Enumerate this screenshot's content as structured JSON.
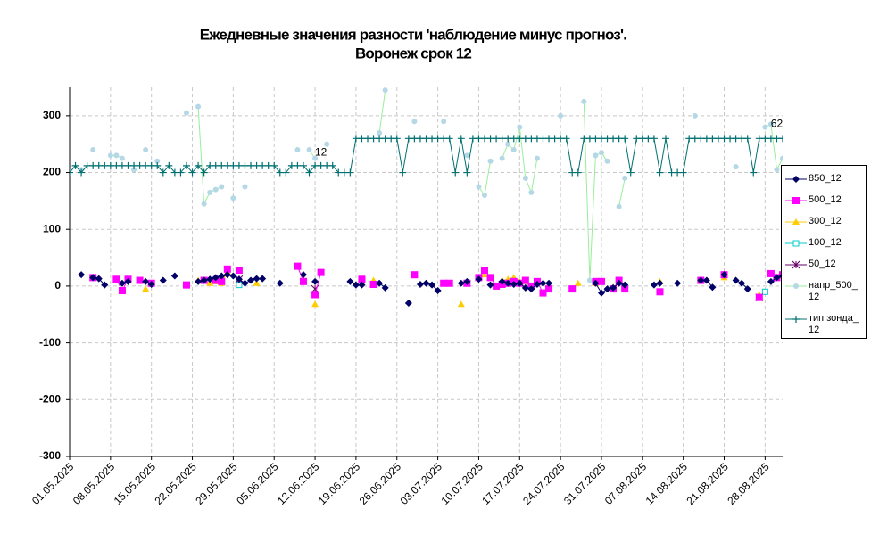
{
  "chart_data": {
    "type": "line",
    "title": "Ежедневные значения разности 'наблюдение минус прогноз'.",
    "subtitle": "Воронеж    срок 12",
    "annotations": [
      {
        "text": "12",
        "category": 43,
        "y": 235
      },
      {
        "text": "62",
        "category": 121,
        "y": 285
      }
    ],
    "categories": [
      "01.05.2025",
      null,
      null,
      null,
      null,
      null,
      null,
      "08.05.2025",
      null,
      null,
      null,
      null,
      null,
      null,
      "15.05.2025",
      null,
      null,
      null,
      null,
      null,
      null,
      "22.05.2025",
      null,
      null,
      null,
      null,
      null,
      null,
      "29.05.2025",
      null,
      null,
      null,
      null,
      null,
      null,
      "05.06.2025",
      null,
      null,
      null,
      null,
      null,
      null,
      "12.06.2025",
      null,
      null,
      null,
      null,
      null,
      null,
      "19.06.2025",
      null,
      null,
      null,
      null,
      null,
      null,
      "26.06.2025",
      null,
      null,
      null,
      null,
      null,
      null,
      "03.07.2025",
      null,
      null,
      null,
      null,
      null,
      null,
      "10.07.2025",
      null,
      null,
      null,
      null,
      null,
      null,
      "17.07.2025",
      null,
      null,
      null,
      null,
      null,
      null,
      "24.07.2025",
      null,
      null,
      null,
      null,
      null,
      null,
      "31.07.2025",
      null,
      null,
      null,
      null,
      null,
      null,
      "07.08.2025",
      null,
      null,
      null,
      null,
      null,
      null,
      "14.08.2025",
      null,
      null,
      null,
      null,
      null,
      null,
      "21.08.2025",
      null,
      null,
      null,
      null,
      null,
      null,
      "28.08.2025",
      null,
      null,
      null
    ],
    "ylim": [
      -300,
      350
    ],
    "yticks": [
      -300,
      -200,
      -100,
      0,
      100,
      200,
      300
    ],
    "grid": true,
    "legend": "right",
    "series": [
      {
        "name": "850_12",
        "color": "#000066",
        "line_color": "#000066",
        "marker": "diamond",
        "values": [
          null,
          null,
          20,
          null,
          15,
          13,
          2,
          null,
          null,
          5,
          8,
          null,
          null,
          8,
          3,
          null,
          10,
          null,
          18,
          null,
          null,
          null,
          8,
          10,
          12,
          15,
          18,
          20,
          18,
          12,
          5,
          10,
          13,
          13,
          null,
          null,
          5,
          null,
          null,
          null,
          20,
          null,
          8,
          null,
          null,
          null,
          null,
          null,
          8,
          2,
          2,
          null,
          null,
          5,
          -3,
          null,
          null,
          null,
          -30,
          null,
          3,
          5,
          2,
          -8,
          null,
          null,
          null,
          5,
          8,
          null,
          12,
          null,
          2,
          null,
          8,
          5,
          3,
          5,
          -3,
          -5,
          3,
          5,
          5,
          null,
          null,
          null,
          null,
          null,
          null,
          null,
          5,
          -12,
          -5,
          -3,
          5,
          2,
          null,
          null,
          null,
          null,
          2,
          5,
          null,
          null,
          5,
          null,
          null,
          null,
          10,
          10,
          -2,
          null,
          20,
          null,
          10,
          5,
          -5,
          null,
          null,
          null,
          8,
          15,
          18
        ]
      },
      {
        "name": "500_12",
        "color": "#ff00ff",
        "line_color": "#ff00ff",
        "marker": "square",
        "values": [
          null,
          null,
          null,
          null,
          15,
          null,
          null,
          null,
          12,
          -8,
          12,
          null,
          10,
          null,
          5,
          null,
          null,
          null,
          null,
          null,
          2,
          null,
          null,
          10,
          null,
          10,
          8,
          30,
          null,
          28,
          null,
          null,
          null,
          null,
          null,
          null,
          null,
          null,
          null,
          35,
          8,
          null,
          -15,
          24,
          null,
          null,
          null,
          null,
          null,
          null,
          12,
          null,
          3,
          null,
          null,
          null,
          null,
          null,
          null,
          20,
          null,
          null,
          null,
          null,
          5,
          5,
          null,
          null,
          5,
          null,
          15,
          28,
          15,
          0,
          3,
          5,
          8,
          5,
          10,
          0,
          8,
          -12,
          -5,
          null,
          null,
          null,
          -5,
          null,
          null,
          null,
          8,
          8,
          null,
          -5,
          10,
          -5,
          null,
          null,
          null,
          null,
          null,
          -10,
          null,
          null,
          null,
          null,
          null,
          null,
          10,
          null,
          null,
          null,
          20,
          null,
          null,
          null,
          null,
          null,
          -20,
          null,
          22,
          15,
          20
        ]
      },
      {
        "name": "300_12",
        "color": "#ffcc00",
        "line_color": "#ffcc00",
        "marker": "triangle",
        "values": [
          null,
          null,
          null,
          null,
          null,
          null,
          null,
          null,
          null,
          null,
          null,
          null,
          null,
          -5,
          null,
          null,
          null,
          null,
          null,
          null,
          null,
          null,
          10,
          10,
          5,
          8,
          5,
          25,
          null,
          null,
          null,
          null,
          5,
          null,
          null,
          null,
          null,
          null,
          null,
          null,
          10,
          null,
          -32,
          null,
          null,
          null,
          null,
          null,
          null,
          null,
          null,
          null,
          10,
          null,
          null,
          null,
          null,
          null,
          null,
          null,
          null,
          null,
          null,
          null,
          null,
          null,
          null,
          -32,
          null,
          null,
          null,
          20,
          null,
          null,
          10,
          12,
          15,
          8,
          8,
          null,
          null,
          null,
          null,
          null,
          null,
          null,
          null,
          5,
          null,
          null,
          5,
          null,
          null,
          -2,
          null,
          null,
          null,
          null,
          null,
          null,
          null,
          8,
          null,
          null,
          null,
          null,
          null,
          null,
          null,
          null,
          null,
          null,
          15,
          null,
          null,
          null,
          null,
          null,
          -15,
          null,
          null,
          null,
          null
        ]
      },
      {
        "name": "100_12",
        "color": "#00cccc",
        "line_color": "#00cccc",
        "marker": "open-square",
        "values": [
          null,
          null,
          null,
          null,
          null,
          null,
          null,
          null,
          null,
          null,
          null,
          null,
          null,
          null,
          null,
          null,
          null,
          null,
          null,
          null,
          null,
          null,
          null,
          null,
          null,
          null,
          null,
          null,
          null,
          2,
          null,
          null,
          null,
          null,
          null,
          null,
          null,
          null,
          null,
          null,
          null,
          null,
          null,
          null,
          null,
          null,
          null,
          null,
          null,
          null,
          null,
          null,
          null,
          null,
          null,
          null,
          null,
          null,
          null,
          null,
          null,
          null,
          null,
          null,
          null,
          null,
          null,
          null,
          null,
          null,
          null,
          null,
          null,
          null,
          null,
          null,
          null,
          null,
          null,
          null,
          null,
          null,
          null,
          null,
          null,
          null,
          null,
          null,
          null,
          null,
          null,
          null,
          null,
          null,
          null,
          null,
          null,
          null,
          null,
          null,
          null,
          null,
          null,
          null,
          null,
          null,
          null,
          null,
          null,
          null,
          null,
          null,
          null,
          null,
          null,
          null,
          null,
          null,
          null,
          -10,
          null,
          null,
          null
        ]
      },
      {
        "name": "50_12",
        "color": "#660066",
        "line_color": "#660066",
        "marker": "cross",
        "values": [
          null,
          null,
          null,
          null,
          null,
          null,
          null,
          null,
          null,
          null,
          null,
          null,
          null,
          null,
          null,
          null,
          null,
          null,
          null,
          null,
          null,
          null,
          null,
          null,
          null,
          null,
          null,
          null,
          null,
          12,
          null,
          null,
          null,
          null,
          null,
          null,
          null,
          null,
          null,
          null,
          null,
          null,
          -5,
          null,
          null,
          null,
          null,
          null,
          null,
          null,
          null,
          null,
          null,
          null,
          null,
          null,
          null,
          null,
          null,
          null,
          null,
          null,
          null,
          null,
          null,
          null,
          null,
          null,
          null,
          null,
          null,
          null,
          null,
          null,
          null,
          null,
          null,
          null,
          null,
          null,
          null,
          null,
          null,
          null,
          null,
          null,
          null,
          null,
          null,
          null,
          null,
          null,
          null,
          null,
          null,
          null,
          null,
          null,
          null,
          null,
          null,
          null,
          null,
          null,
          null,
          null,
          null,
          null,
          null,
          null,
          null,
          null,
          null,
          null,
          null,
          null,
          null,
          null,
          -20,
          null,
          null,
          null,
          null
        ]
      },
      {
        "name": "напр_500_12",
        "color": "#b4d8e6",
        "line_color": "#99ee99",
        "marker": "circle",
        "values": [
          null,
          null,
          205,
          null,
          240,
          null,
          null,
          230,
          230,
          225,
          null,
          205,
          null,
          240,
          null,
          220,
          null,
          null,
          null,
          null,
          305,
          null,
          316,
          145,
          165,
          170,
          175,
          null,
          155,
          null,
          175,
          null,
          null,
          null,
          null,
          null,
          null,
          null,
          null,
          240,
          null,
          240,
          225,
          null,
          250,
          null,
          null,
          null,
          null,
          null,
          null,
          null,
          null,
          270,
          345,
          null,
          null,
          null,
          null,
          290,
          null,
          null,
          null,
          null,
          290,
          null,
          null,
          null,
          230,
          null,
          175,
          160,
          220,
          null,
          225,
          250,
          240,
          280,
          190,
          165,
          225,
          null,
          null,
          null,
          300,
          null,
          null,
          null,
          325,
          10,
          230,
          235,
          220,
          null,
          140,
          190,
          null,
          null,
          null,
          null,
          null,
          null,
          null,
          null,
          null,
          null,
          null,
          300,
          null,
          null,
          null,
          null,
          null,
          null,
          210,
          null,
          null,
          null,
          null,
          280,
          285,
          205,
          225
        ]
      },
      {
        "name": "тип зонда_12",
        "color": "#007070",
        "line_color": "#007070",
        "marker": "plus",
        "values": [
          200,
          212,
          200,
          212,
          212,
          212,
          212,
          212,
          212,
          212,
          212,
          212,
          212,
          212,
          212,
          212,
          200,
          212,
          200,
          200,
          212,
          200,
          212,
          200,
          212,
          212,
          212,
          212,
          212,
          212,
          212,
          212,
          212,
          212,
          212,
          212,
          200,
          200,
          212,
          212,
          212,
          200,
          212,
          212,
          212,
          212,
          200,
          200,
          200,
          260,
          260,
          260,
          260,
          260,
          260,
          260,
          260,
          200,
          260,
          260,
          260,
          260,
          260,
          260,
          260,
          260,
          200,
          260,
          200,
          260,
          260,
          260,
          260,
          260,
          260,
          260,
          260,
          260,
          260,
          260,
          260,
          260,
          260,
          260,
          260,
          260,
          200,
          200,
          260,
          260,
          260,
          260,
          260,
          260,
          260,
          260,
          200,
          260,
          260,
          260,
          260,
          200,
          260,
          200,
          200,
          200,
          260,
          260,
          260,
          260,
          260,
          260,
          260,
          260,
          260,
          260,
          260,
          200,
          260,
          260,
          260,
          260,
          260
        ]
      }
    ]
  }
}
